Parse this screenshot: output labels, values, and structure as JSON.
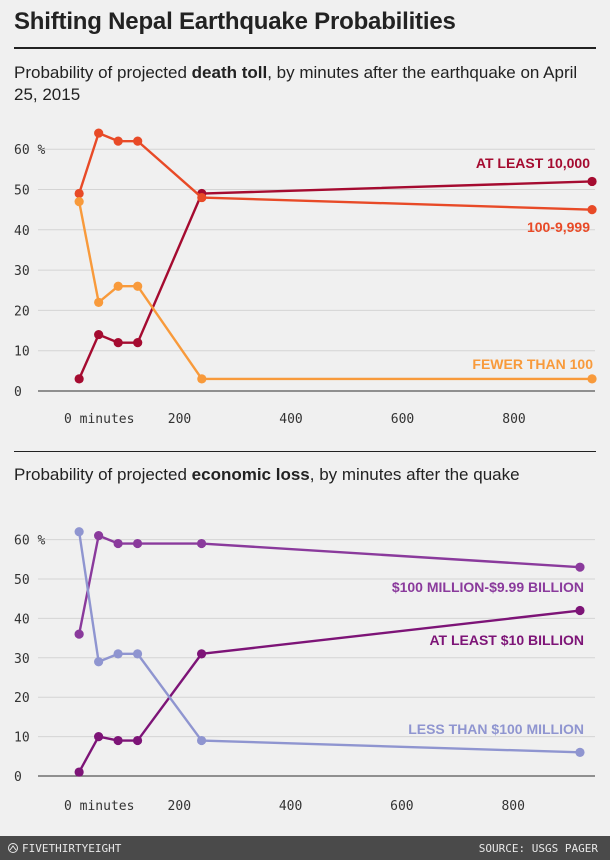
{
  "title": "Shifting Nepal Earthquake Probabilities",
  "subtitle1": {
    "pre": "Probability of projected ",
    "bold": "death toll",
    "post": ", by minutes after the earthquake on April 25, 2015"
  },
  "subtitle2": {
    "pre": "Probability of projected ",
    "bold": "economic loss",
    "post": ", by minutes after the quake"
  },
  "footer": {
    "brand": "FIVETHIRTYEIGHT",
    "source": "SOURCE: USGS PAGER"
  },
  "chart_data": [
    {
      "type": "line",
      "title": "Probability of projected death toll, by minutes after the earthquake on April 25, 2015",
      "x_unit": "minutes",
      "xlim": [
        0,
        940
      ],
      "ylim": [
        0,
        65
      ],
      "x_ticks": [
        0,
        200,
        400,
        600,
        800
      ],
      "x_tick_labels": [
        "0 minutes",
        "200",
        "400",
        "600",
        "800"
      ],
      "y_ticks": [
        0,
        10,
        20,
        30,
        40,
        50,
        60
      ],
      "y_tick_labels": [
        "0",
        "10",
        "20",
        "30",
        "40",
        "50",
        "60 %"
      ],
      "grid": "y",
      "series": [
        {
          "name": "AT LEAST 10,000",
          "color": "#a50b30",
          "x": [
            20,
            55,
            90,
            125,
            240,
            940
          ],
          "y": [
            3,
            14,
            12,
            12,
            49,
            52
          ]
        },
        {
          "name": "100-9,999",
          "color": "#e84a27",
          "x": [
            20,
            55,
            90,
            125,
            240,
            940
          ],
          "y": [
            49,
            64,
            62,
            62,
            48,
            45
          ]
        },
        {
          "name": "FEWER THAN 100",
          "color": "#f89a3b",
          "x": [
            20,
            55,
            90,
            125,
            240,
            940
          ],
          "y": [
            47,
            22,
            26,
            26,
            3,
            3
          ]
        }
      ]
    },
    {
      "type": "line",
      "title": "Probability of projected economic loss, by minutes after the quake",
      "x_unit": "minutes",
      "xlim": [
        0,
        920
      ],
      "ylim": [
        0,
        65
      ],
      "x_ticks": [
        0,
        200,
        400,
        600,
        800
      ],
      "x_tick_labels": [
        "0 minutes",
        "200",
        "400",
        "600",
        "800"
      ],
      "y_ticks": [
        0,
        10,
        20,
        30,
        40,
        50,
        60
      ],
      "y_tick_labels": [
        "0",
        "10",
        "20",
        "30",
        "40",
        "50",
        "60 %"
      ],
      "grid": "y",
      "series": [
        {
          "name": "$100 MILLION-$9.99 BILLION",
          "color": "#8a3a9c",
          "x": [
            20,
            55,
            90,
            125,
            240,
            920
          ],
          "y": [
            36,
            61,
            59,
            59,
            59,
            53
          ]
        },
        {
          "name": "AT LEAST $10 BILLION",
          "color": "#7d1477",
          "x": [
            20,
            55,
            90,
            125,
            240,
            920
          ],
          "y": [
            1,
            10,
            9,
            9,
            31,
            42
          ]
        },
        {
          "name": "LESS THAN $100 MILLION",
          "color": "#8f95d0",
          "x": [
            20,
            55,
            90,
            125,
            240,
            920
          ],
          "y": [
            62,
            29,
            31,
            31,
            9,
            6
          ]
        }
      ]
    }
  ]
}
